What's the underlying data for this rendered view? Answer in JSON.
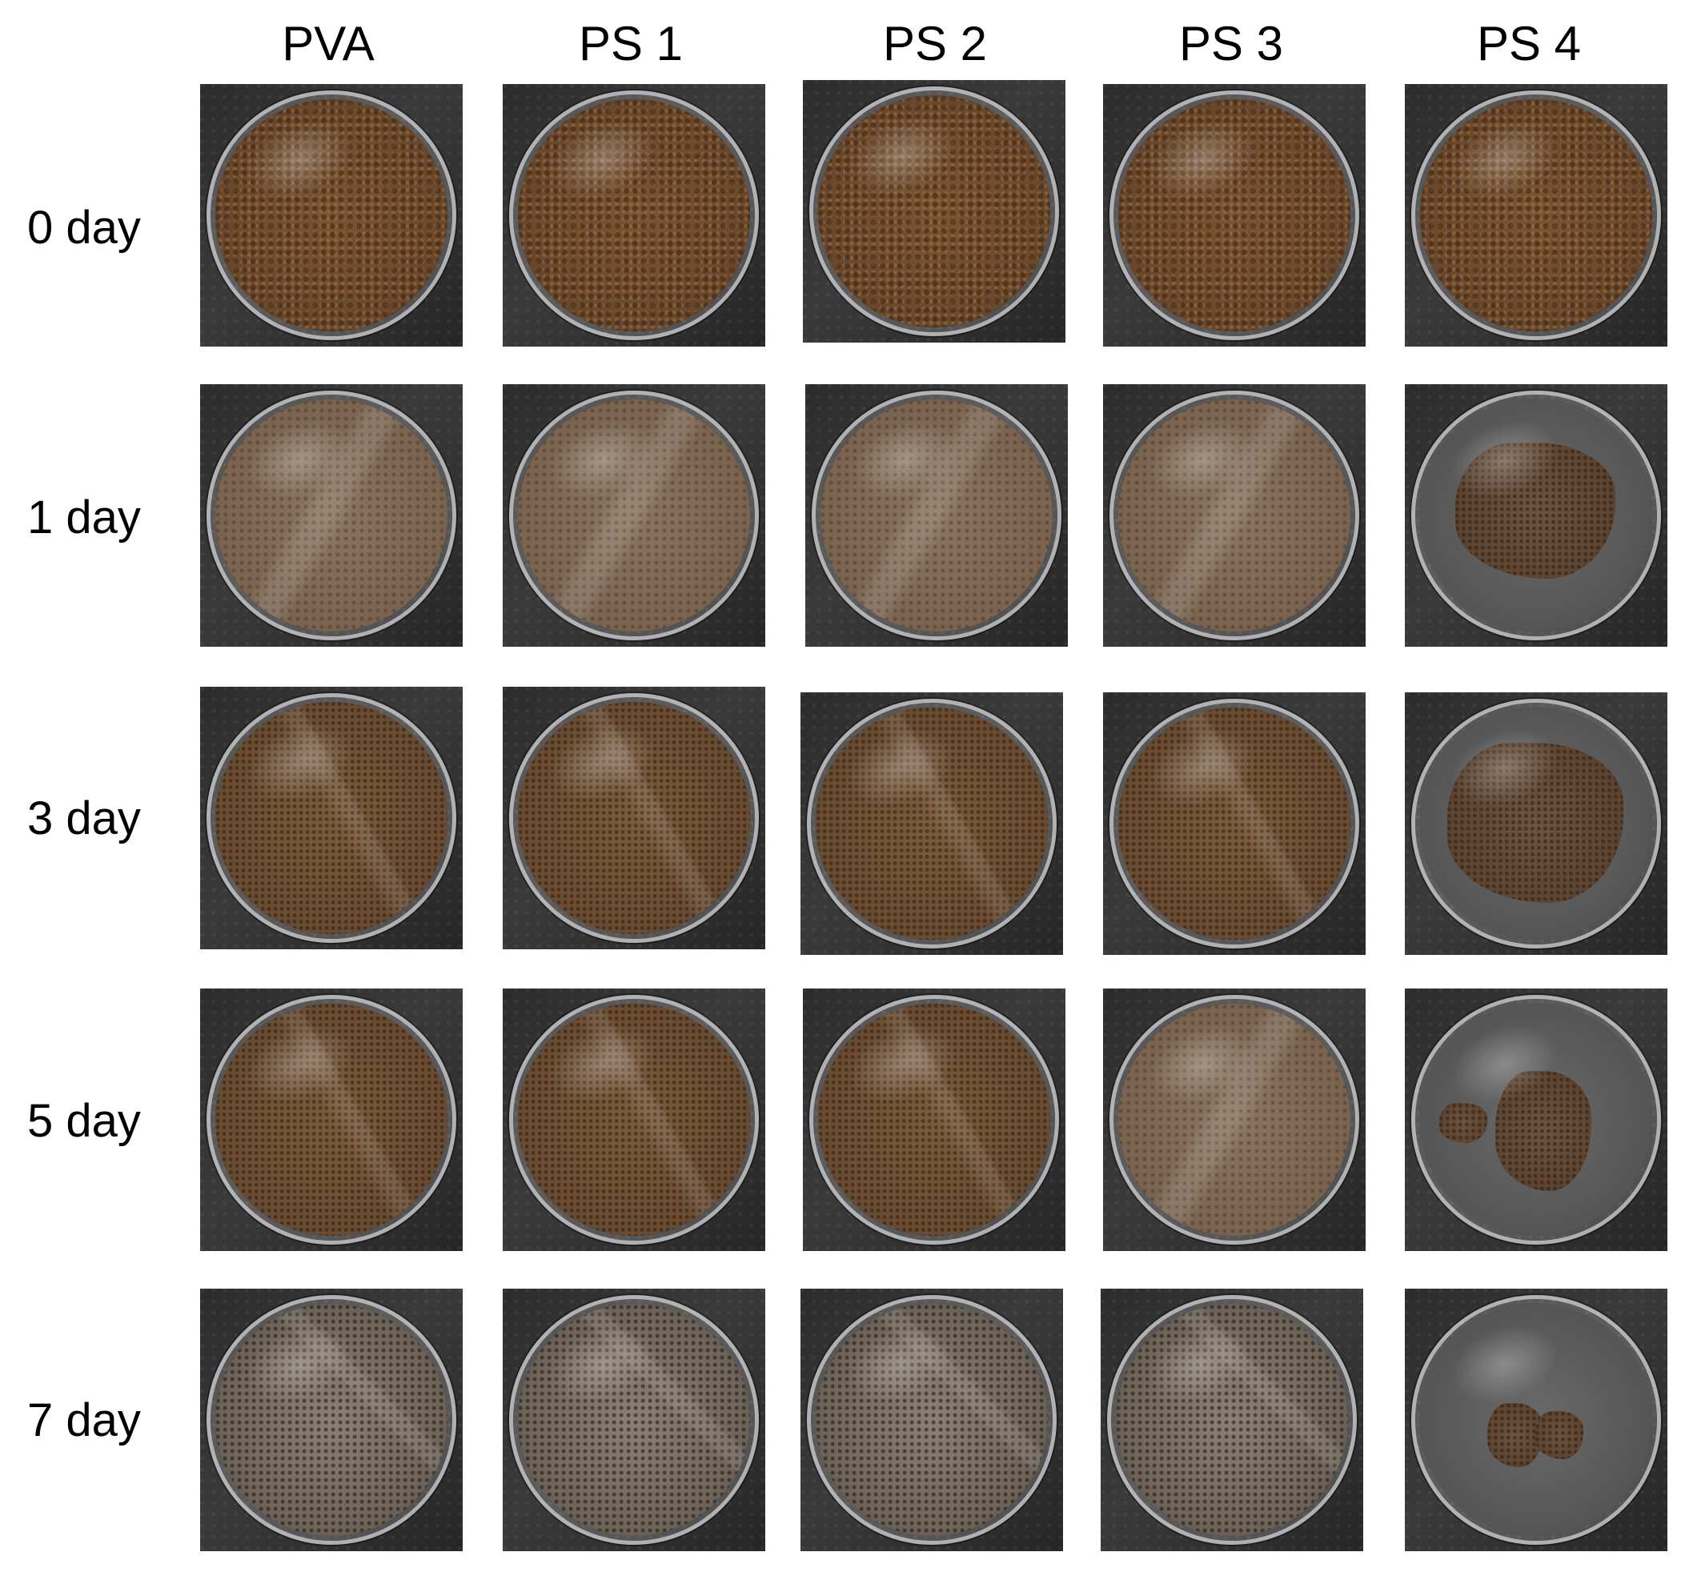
{
  "columns": [
    "PVA",
    "PS 1",
    "PS 2",
    "PS 3",
    "PS 4"
  ],
  "rows": [
    "0 day",
    "1 day",
    "3 day",
    "5 day",
    "7 day"
  ]
}
